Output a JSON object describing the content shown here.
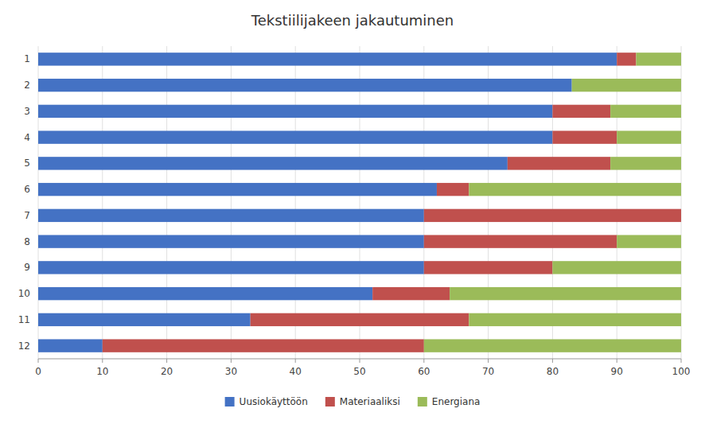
{
  "chart_data": {
    "type": "bar",
    "orientation": "horizontal",
    "stacked": true,
    "title": "Tekstiilijakeen jakautuminen",
    "categories": [
      "1",
      "2",
      "3",
      "4",
      "5",
      "6",
      "7",
      "8",
      "9",
      "10",
      "11",
      "12"
    ],
    "series": [
      {
        "name": "Uusiokäyttöön",
        "color": "#4472C4",
        "values": [
          90,
          83,
          80,
          80,
          73,
          62,
          60,
          60,
          60,
          52,
          33,
          10
        ]
      },
      {
        "name": "Materiaaliksi",
        "color": "#C0504D",
        "values": [
          3,
          0,
          9,
          10,
          16,
          5,
          40,
          30,
          20,
          12,
          34,
          50
        ]
      },
      {
        "name": "Energiana",
        "color": "#9BBB59",
        "values": [
          7,
          17,
          11,
          10,
          11,
          33,
          0,
          10,
          20,
          36,
          33,
          40
        ]
      }
    ],
    "xlim": [
      0,
      100
    ],
    "xticks": [
      0,
      10,
      20,
      30,
      40,
      50,
      60,
      70,
      80,
      90,
      100
    ],
    "grid": true,
    "legend": "bottom"
  }
}
